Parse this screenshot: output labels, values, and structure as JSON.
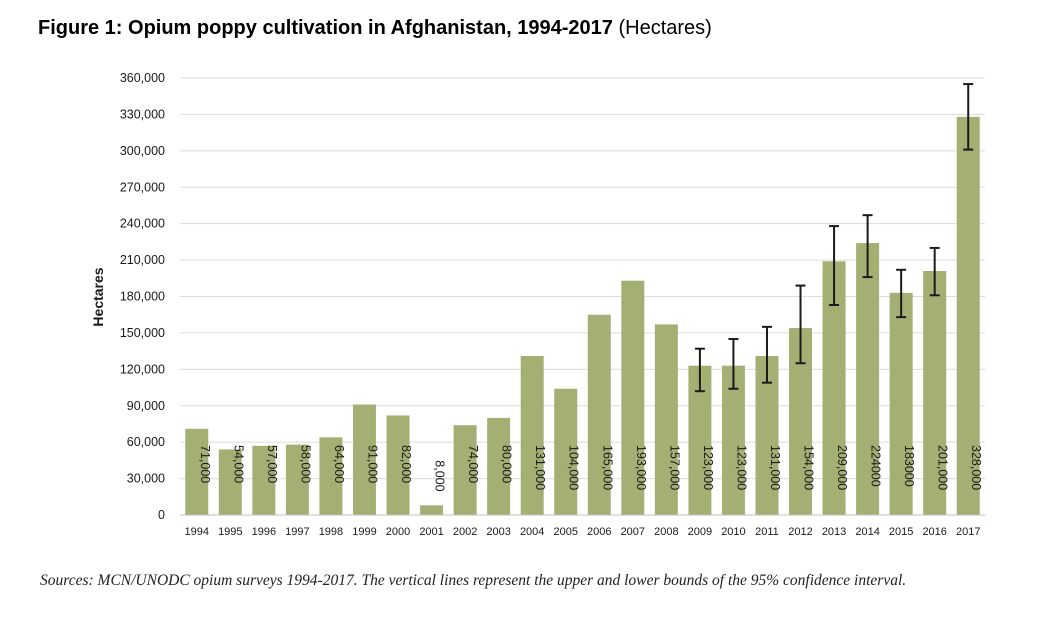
{
  "title": {
    "main": "Figure 1: Opium poppy cultivation in Afghanistan, 1994-2017",
    "unit": "(Hectares)"
  },
  "sources_note": "Sources: MCN/UNODC opium surveys 1994-2017. The vertical lines represent the upper and lower bounds of the 95% confidence interval.",
  "colors": {
    "bar": "#a4b073",
    "grid": "#dcdcdc",
    "error_bar": "#1a1a1a",
    "label": "#1a1a1a"
  },
  "chart_data": {
    "type": "bar",
    "title": "Figure 1: Opium poppy cultivation in Afghanistan, 1994-2017 (Hectares)",
    "xlabel": "",
    "ylabel": "Hectares",
    "ylim": [
      0,
      360000
    ],
    "yticks": [
      0,
      30000,
      60000,
      90000,
      120000,
      150000,
      180000,
      210000,
      240000,
      270000,
      300000,
      330000,
      360000
    ],
    "ytick_labels": [
      "0",
      "30,000",
      "60,000",
      "90,000",
      "120,000",
      "150,000",
      "180,000",
      "210,000",
      "240,000",
      "270,000",
      "300,000",
      "330,000",
      "360,000"
    ],
    "grid": true,
    "legend": "none",
    "categories": [
      "1994",
      "1995",
      "1996",
      "1997",
      "1998",
      "1999",
      "2000",
      "2001",
      "2002",
      "2003",
      "2004",
      "2005",
      "2006",
      "2007",
      "2008",
      "2009",
      "2010",
      "2011",
      "2012",
      "2013",
      "2014",
      "2015",
      "2016",
      "2017"
    ],
    "values": [
      71000,
      54000,
      57000,
      58000,
      64000,
      91000,
      82000,
      8000,
      74000,
      80000,
      131000,
      104000,
      165000,
      193000,
      157000,
      123000,
      123000,
      131000,
      154000,
      209000,
      224000,
      183000,
      201000,
      328000
    ],
    "value_labels": [
      "71,000",
      "54,000",
      "57,000",
      "58,000",
      "64,000",
      "91,000",
      "82,000",
      "8,000",
      "74,000",
      "80,000",
      "131,000",
      "104,000",
      "165,000",
      "193,000",
      "157,000",
      "123,000",
      "123,000",
      "131,000",
      "154,000",
      "209,000",
      "224000",
      "183000",
      "201,000",
      "328,000"
    ],
    "error_bars": [
      {
        "category": "2009",
        "low": 102000,
        "high": 137000
      },
      {
        "category": "2010",
        "low": 104000,
        "high": 145000
      },
      {
        "category": "2011",
        "low": 109000,
        "high": 155000
      },
      {
        "category": "2012",
        "low": 125000,
        "high": 189000
      },
      {
        "category": "2013",
        "low": 173000,
        "high": 238000
      },
      {
        "category": "2014",
        "low": 196000,
        "high": 247000
      },
      {
        "category": "2015",
        "low": 163000,
        "high": 202000
      },
      {
        "category": "2016",
        "low": 181000,
        "high": 220000
      },
      {
        "category": "2017",
        "low": 301000,
        "high": 355000
      }
    ]
  }
}
